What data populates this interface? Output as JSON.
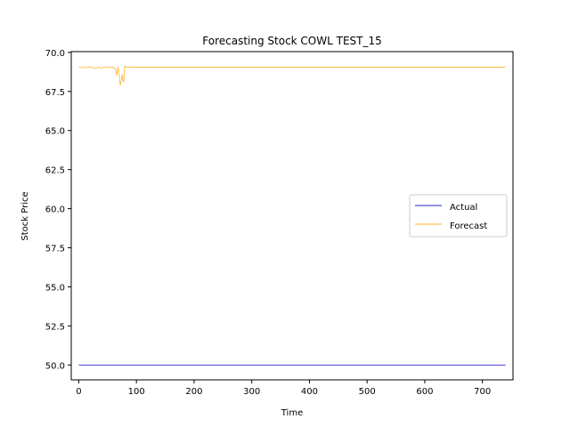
{
  "chart_data": {
    "type": "line",
    "title": "Forecasting Stock COWL TEST_15",
    "xlabel": "Time",
    "ylabel": "Stock Price",
    "xlim": [
      -13,
      753
    ],
    "ylim": [
      49.05,
      70.05
    ],
    "xticks": [
      0,
      100,
      200,
      300,
      400,
      500,
      600,
      700
    ],
    "yticks": [
      50.0,
      52.5,
      55.0,
      57.5,
      60.0,
      62.5,
      65.0,
      67.5,
      70.0
    ],
    "grid": false,
    "legend_position": "center-right",
    "series": [
      {
        "name": "Actual",
        "color": "#0000cc",
        "x": [
          0,
          740
        ],
        "y": [
          50.0,
          50.0
        ]
      },
      {
        "name": "Forecast",
        "color": "#ffa500",
        "x": [
          0,
          10,
          20,
          30,
          35,
          40,
          45,
          50,
          60,
          64,
          66,
          68,
          70,
          72,
          74,
          75,
          76,
          78,
          79,
          80,
          82,
          85,
          90,
          100,
          200,
          300,
          400,
          500,
          600,
          700,
          740
        ],
        "y": [
          69.05,
          69.02,
          69.05,
          68.99,
          69.04,
          69.0,
          69.06,
          69.03,
          69.05,
          68.9,
          68.55,
          69.05,
          68.6,
          67.9,
          68.2,
          68.6,
          68.3,
          68.1,
          68.9,
          69.15,
          69.05,
          69.08,
          69.05,
          69.05,
          69.05,
          69.05,
          69.05,
          69.05,
          69.05,
          69.05,
          69.05
        ]
      }
    ]
  }
}
